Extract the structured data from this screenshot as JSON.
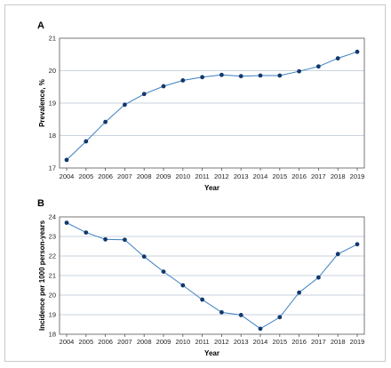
{
  "colors": {
    "line": "#3a7fc0",
    "marker": "#12386d",
    "grid": "#b8c4d4"
  },
  "chart_data": [
    {
      "panel": "A",
      "type": "line",
      "xlabel": "Year",
      "ylabel": "Prevalence, %",
      "x": [
        2004,
        2005,
        2006,
        2007,
        2008,
        2009,
        2010,
        2011,
        2012,
        2013,
        2014,
        2015,
        2016,
        2017,
        2018,
        2019
      ],
      "y": [
        17.25,
        17.82,
        18.42,
        18.95,
        19.28,
        19.52,
        19.7,
        19.8,
        19.87,
        19.83,
        19.85,
        19.85,
        19.98,
        20.13,
        20.38,
        20.58
      ],
      "ylim": [
        17,
        21
      ],
      "yticks": [
        17,
        18,
        19,
        20,
        21
      ],
      "grid": "horizontal"
    },
    {
      "panel": "B",
      "type": "line",
      "xlabel": "Year",
      "ylabel": "Incidence per 1000 person-years",
      "x": [
        2004,
        2005,
        2006,
        2007,
        2008,
        2009,
        2010,
        2011,
        2012,
        2013,
        2014,
        2015,
        2016,
        2017,
        2018,
        2019
      ],
      "y": [
        23.7,
        23.2,
        22.85,
        22.83,
        21.97,
        21.2,
        20.5,
        19.77,
        19.12,
        18.98,
        18.28,
        18.87,
        20.13,
        20.9,
        22.1,
        22.6
      ],
      "ylim": [
        18,
        24
      ],
      "yticks": [
        18,
        19,
        20,
        21,
        22,
        23,
        24
      ],
      "grid": "horizontal"
    }
  ]
}
